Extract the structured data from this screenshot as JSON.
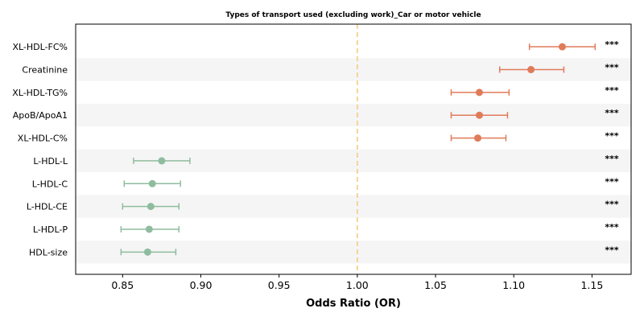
{
  "chart_data": {
    "type": "forest",
    "title": "Types of transport used (excluding work)_Car or motor vehicle",
    "xlabel": "Odds Ratio (OR)",
    "xlim": [
      0.82,
      1.175
    ],
    "xticks": [
      0.85,
      0.9,
      0.95,
      1.0,
      1.05,
      1.1,
      1.15
    ],
    "xtick_labels": [
      "0.85",
      "0.90",
      "0.95",
      "1.00",
      "1.05",
      "1.10",
      "1.15"
    ],
    "reference_line": 1.0,
    "rows": [
      {
        "label": "XL-HDL-FC%",
        "or": 1.131,
        "lo": 1.11,
        "hi": 1.152,
        "sig": "***",
        "direction": "up"
      },
      {
        "label": "Creatinine",
        "or": 1.111,
        "lo": 1.091,
        "hi": 1.132,
        "sig": "***",
        "direction": "up"
      },
      {
        "label": "XL-HDL-TG%",
        "or": 1.078,
        "lo": 1.06,
        "hi": 1.097,
        "sig": "***",
        "direction": "up"
      },
      {
        "label": "ApoB/ApoA1",
        "or": 1.078,
        "lo": 1.06,
        "hi": 1.096,
        "sig": "***",
        "direction": "up"
      },
      {
        "label": "XL-HDL-C%",
        "or": 1.077,
        "lo": 1.06,
        "hi": 1.095,
        "sig": "***",
        "direction": "up"
      },
      {
        "label": "L-HDL-L",
        "or": 0.875,
        "lo": 0.857,
        "hi": 0.893,
        "sig": "***",
        "direction": "down"
      },
      {
        "label": "L-HDL-C",
        "or": 0.869,
        "lo": 0.851,
        "hi": 0.887,
        "sig": "***",
        "direction": "down"
      },
      {
        "label": "L-HDL-CE",
        "or": 0.868,
        "lo": 0.85,
        "hi": 0.886,
        "sig": "***",
        "direction": "down"
      },
      {
        "label": "L-HDL-P",
        "or": 0.867,
        "lo": 0.849,
        "hi": 0.886,
        "sig": "***",
        "direction": "down"
      },
      {
        "label": "HDL-size",
        "or": 0.866,
        "lo": 0.849,
        "hi": 0.884,
        "sig": "***",
        "direction": "down"
      }
    ],
    "colors": {
      "up": "#e07b5a",
      "down": "#8fbc9f",
      "reference": "#f5c97a",
      "stripe": "#f5f5f5"
    },
    "grid": false
  }
}
